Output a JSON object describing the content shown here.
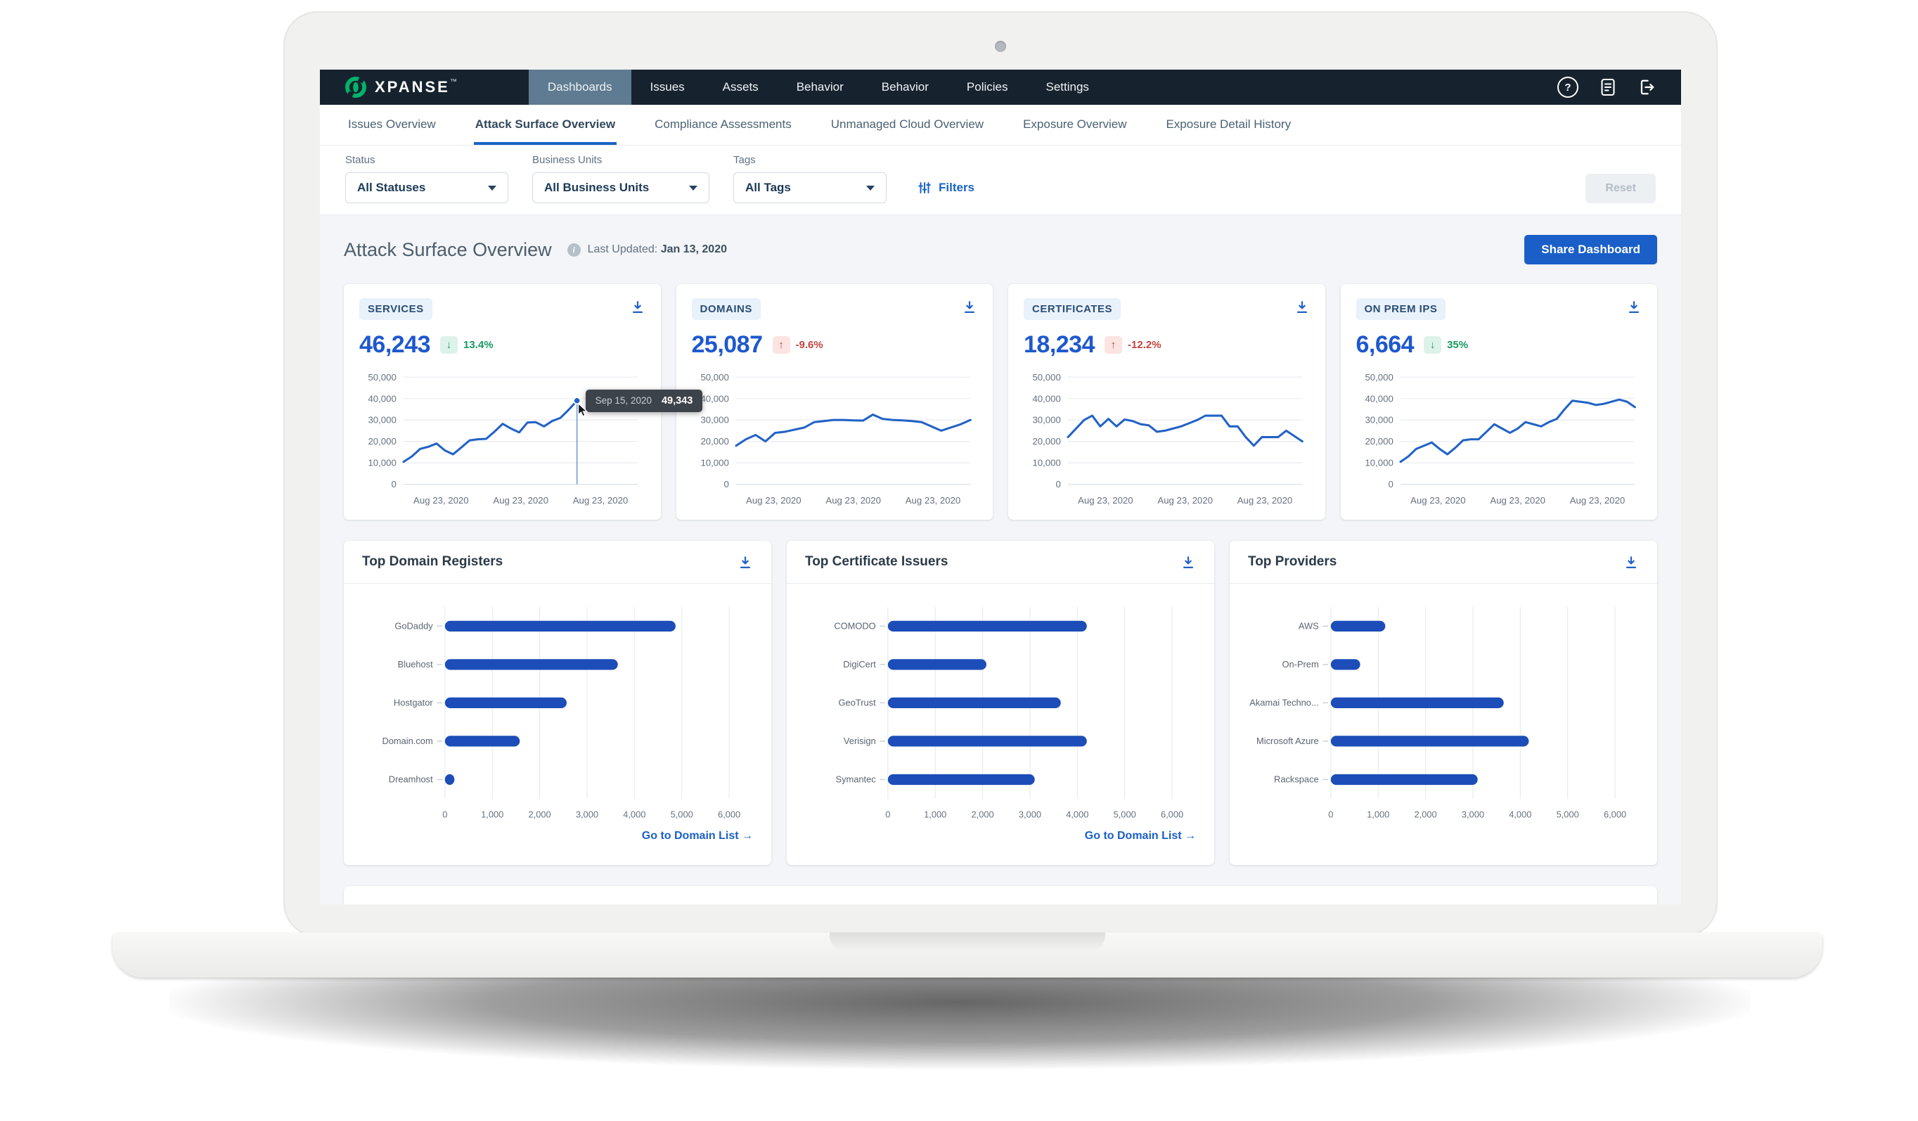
{
  "brand": {
    "name": "XPANSE",
    "trademark": "™"
  },
  "nav": {
    "items": [
      {
        "label": "Dashboards",
        "active": true
      },
      {
        "label": "Issues",
        "active": false
      },
      {
        "label": "Assets",
        "active": false
      },
      {
        "label": "Behavior",
        "active": false
      },
      {
        "label": "Behavior",
        "active": false
      },
      {
        "label": "Policies",
        "active": false
      },
      {
        "label": "Settings",
        "active": false
      }
    ]
  },
  "tabs": [
    {
      "label": "Issues Overview",
      "active": false
    },
    {
      "label": "Attack Surface Overview",
      "active": true
    },
    {
      "label": "Compliance Assessments",
      "active": false
    },
    {
      "label": "Unmanaged Cloud Overview",
      "active": false
    },
    {
      "label": "Exposure Overview",
      "active": false
    },
    {
      "label": "Exposure Detail History",
      "active": false
    }
  ],
  "filters": {
    "fields": [
      {
        "label": "Status",
        "value": "All Statuses"
      },
      {
        "label": "Business Units",
        "value": "All Business Units"
      },
      {
        "label": "Tags",
        "value": "All Tags"
      }
    ],
    "filters_link": "Filters",
    "reset_label": "Reset"
  },
  "header": {
    "title": "Attack Surface Overview",
    "last_updated_label": "Last Updated:",
    "last_updated_value": "Jan 13, 2020",
    "share_button": "Share Dashboard"
  },
  "colors": {
    "accent_blue": "#1a5fc8",
    "line_blue": "#2262c6",
    "bar_blue": "#1c4db8",
    "positive_green": "#169a62",
    "negative_red": "#bf4540",
    "nav_dark": "#16232e",
    "nav_active": "#5e7b91",
    "brand_green": "#00b36a",
    "main_bg": "#f3f5f8"
  },
  "chart_data": {
    "kpis": [
      {
        "type": "line",
        "label": "SERVICES",
        "value": "46,243",
        "delta": {
          "direction": "down",
          "text": "13.4%",
          "sentiment": "positive"
        },
        "ymax": 50000,
        "yticks": [
          "50,000",
          "40,000",
          "30,000",
          "20,000",
          "10,000",
          "0"
        ],
        "xticks": [
          "Aug 23, 2020",
          "Aug 23, 2020",
          "Aug 23, 2020"
        ],
        "values": [
          10500,
          13000,
          16500,
          17500,
          19000,
          15800,
          14000,
          17200,
          20500,
          21000,
          21200,
          24500,
          28200,
          26000,
          24200,
          28800,
          29000,
          27000,
          29500,
          31000,
          34800,
          39000
        ],
        "x_extent": 0.74,
        "tooltip": {
          "date": "Sep 15, 2020",
          "value": "49,343"
        }
      },
      {
        "type": "line",
        "label": "DOMAINS",
        "value": "25,087",
        "delta": {
          "direction": "up",
          "text": "-9.6%",
          "sentiment": "negative"
        },
        "ymax": 50000,
        "yticks": [
          "50,000",
          "40,000",
          "30,000",
          "20,000",
          "10,000",
          "0"
        ],
        "xticks": [
          "Aug 23, 2020",
          "Aug 23, 2020",
          "Aug 23, 2020"
        ],
        "values": [
          18000,
          21000,
          23000,
          20000,
          24000,
          24500,
          25500,
          26500,
          29000,
          29500,
          30000,
          30000,
          29800,
          29700,
          32500,
          30500,
          30000,
          29800,
          29500,
          29000,
          27000,
          25000,
          26500,
          28000,
          30000
        ],
        "x_extent": 1,
        "tooltip": null
      },
      {
        "type": "line",
        "label": "CERTIFICATES",
        "value": "18,234",
        "delta": {
          "direction": "up",
          "text": "-12.2%",
          "sentiment": "negative"
        },
        "ymax": 50000,
        "yticks": [
          "50,000",
          "40,000",
          "30,000",
          "20,000",
          "10,000",
          "0"
        ],
        "xticks": [
          "Aug 23, 2020",
          "Aug 23, 2020",
          "Aug 23, 2020"
        ],
        "values": [
          22000,
          26000,
          30000,
          32000,
          27000,
          30500,
          27000,
          30200,
          29500,
          28000,
          27500,
          24500,
          25000,
          26000,
          27000,
          28500,
          30000,
          32000,
          32000,
          32000,
          27000,
          27000,
          22000,
          18000,
          22000,
          22000,
          22000,
          25000,
          22500,
          20000
        ],
        "x_extent": 1,
        "tooltip": null
      },
      {
        "type": "line",
        "label": "ON PREM IPS",
        "value": "6,664",
        "delta": {
          "direction": "down",
          "text": "35%",
          "sentiment": "positive"
        },
        "ymax": 50000,
        "yticks": [
          "50,000",
          "40,000",
          "30,000",
          "20,000",
          "10,000",
          "0"
        ],
        "xticks": [
          "Aug 23, 2020",
          "Aug 23, 2020",
          "Aug 23, 2020"
        ],
        "values": [
          10500,
          13000,
          16500,
          18000,
          19500,
          16500,
          14000,
          17000,
          20500,
          21000,
          21000,
          24500,
          28000,
          26000,
          24000,
          26000,
          29000,
          28000,
          27000,
          29000,
          30500,
          35000,
          39000,
          38500,
          38000,
          37000,
          37500,
          38500,
          39500,
          38500,
          36000
        ],
        "x_extent": 1,
        "tooltip": null
      }
    ],
    "bar_charts": [
      {
        "type": "bar",
        "title": "Top Domain Registers",
        "categories": [
          "GoDaddy",
          "Bluehost",
          "Hostgator",
          "Domain.com",
          "Dreamhost"
        ],
        "values": [
          4870,
          3650,
          2570,
          1580,
          200
        ],
        "xmax": 6000,
        "xticks": [
          "0",
          "1,000",
          "2,000",
          "3,000",
          "4,000",
          "5,000",
          "6,000"
        ],
        "footer_link": "Go to Domain List →"
      },
      {
        "type": "bar",
        "title": "Top Certificate Issuers",
        "categories": [
          "COMODO",
          "DigiCert",
          "GeoTrust",
          "Verisign",
          "Symantec"
        ],
        "values": [
          4200,
          2080,
          3650,
          4200,
          3100
        ],
        "xmax": 6000,
        "xticks": [
          "0",
          "1,000",
          "2,000",
          "3,000",
          "4,000",
          "5,000",
          "6,000"
        ],
        "footer_link": "Go to Domain List →"
      },
      {
        "type": "bar",
        "title": "Top Providers",
        "categories": [
          "AWS",
          "On-Prem",
          "Akamai Techno...",
          "Microsoft Azure",
          "Rackspace"
        ],
        "values": [
          1150,
          620,
          3650,
          4180,
          3100
        ],
        "xmax": 6000,
        "xticks": [
          "0",
          "1,000",
          "2,000",
          "3,000",
          "4,000",
          "5,000",
          "6,000"
        ],
        "footer_link": null
      }
    ]
  }
}
